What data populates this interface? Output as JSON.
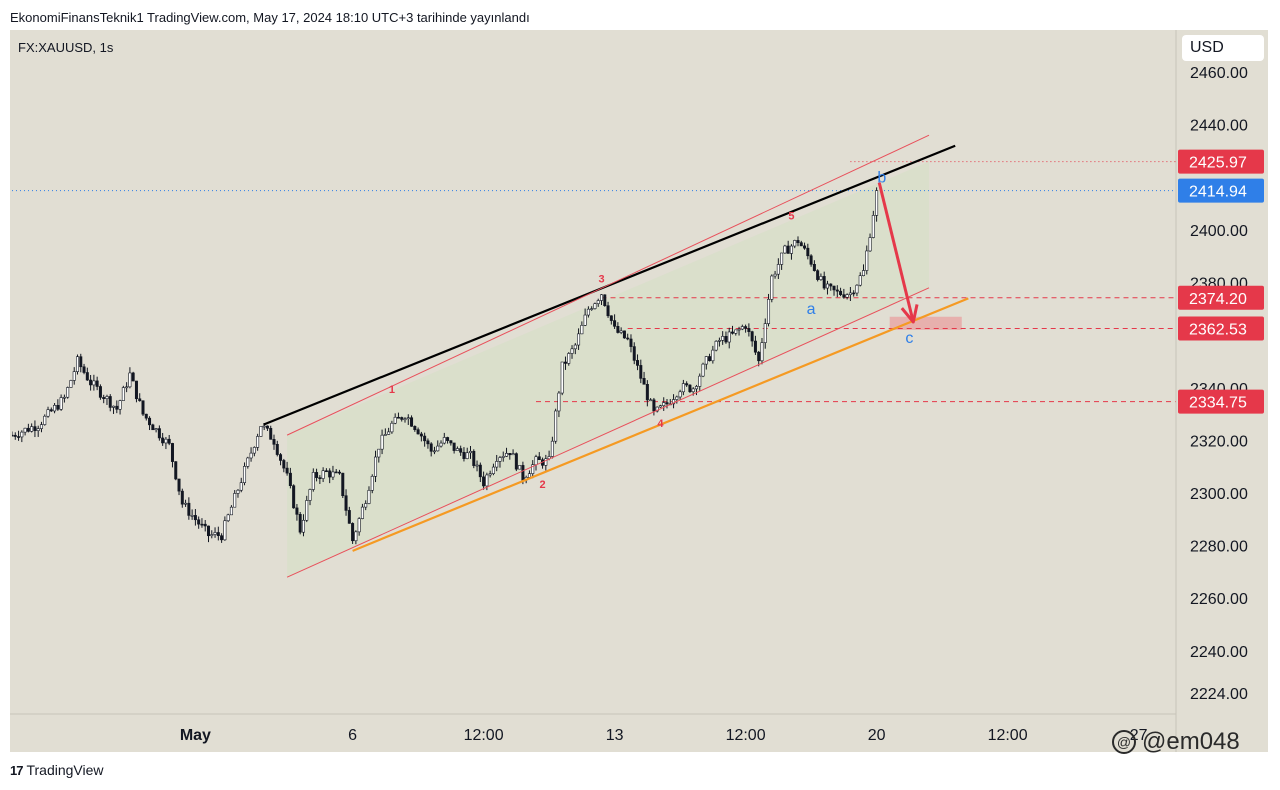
{
  "header": "EkonomiFinansTeknik1 TradingView.com, May 17, 2024 18:10 UTC+3 tarihinde yayınlandı",
  "symbol": "FX:XAUUSD, 1s",
  "currency": "USD",
  "footer_brand": "TradingView",
  "watermark": "@em048",
  "colors": {
    "background": "#e1ded3",
    "candle": "#131722",
    "black_trend": "#000000",
    "orange_trend": "#f59a23",
    "red_channel": "#e8505b",
    "price_tag_red": "#e5384a",
    "price_tag_blue": "#2f7fe8",
    "wave_red": "#e5384a",
    "wave_blue": "#2f7fe8",
    "arrow": "#e5384a"
  },
  "chart_data": {
    "type": "candlestick",
    "title": "",
    "ylim": [
      2216,
      2476
    ],
    "y_ticks": [
      "2460.00",
      "2440.00",
      "2400.00",
      "2380.00",
      "2340.00",
      "2320.00",
      "2300.00",
      "2280.00",
      "2260.00",
      "2240.00",
      "2224.00"
    ],
    "x_ticks": [
      {
        "label": "May",
        "bar": 14,
        "bold": true
      },
      {
        "label": "6",
        "bar": 26
      },
      {
        "label": "12:00",
        "bar": 36
      },
      {
        "label": "13",
        "bar": 46
      },
      {
        "label": "12:00",
        "bar": 56
      },
      {
        "label": "20",
        "bar": 66
      },
      {
        "label": "12:00",
        "bar": 76
      },
      {
        "label": "27",
        "bar": 86
      }
    ],
    "close_path": [
      [
        0,
        2322
      ],
      [
        2,
        2326
      ],
      [
        4,
        2336
      ],
      [
        5,
        2350
      ],
      [
        6,
        2342
      ],
      [
        8,
        2332
      ],
      [
        9,
        2345
      ],
      [
        10,
        2330
      ],
      [
        12,
        2318
      ],
      [
        13,
        2296
      ],
      [
        15,
        2284
      ],
      [
        16,
        2284
      ],
      [
        17,
        2298
      ],
      [
        18,
        2312
      ],
      [
        19,
        2326
      ],
      [
        20,
        2320
      ],
      [
        21,
        2306
      ],
      [
        22,
        2286
      ],
      [
        23,
        2306
      ],
      [
        24,
        2308
      ],
      [
        25,
        2306
      ],
      [
        26,
        2282
      ],
      [
        27,
        2298
      ],
      [
        28,
        2318
      ],
      [
        29,
        2326
      ],
      [
        30,
        2330
      ],
      [
        31,
        2324
      ],
      [
        32,
        2316
      ],
      [
        33,
        2320
      ],
      [
        34,
        2316
      ],
      [
        35,
        2314
      ],
      [
        36,
        2304
      ],
      [
        37,
        2314
      ],
      [
        38,
        2316
      ],
      [
        39,
        2306
      ],
      [
        40,
        2312
      ],
      [
        41,
        2312
      ],
      [
        42,
        2348
      ],
      [
        43,
        2356
      ],
      [
        44,
        2370
      ],
      [
        45,
        2376
      ],
      [
        46,
        2362
      ],
      [
        47,
        2358
      ],
      [
        48,
        2344
      ],
      [
        49,
        2330
      ],
      [
        50,
        2334
      ],
      [
        51,
        2340
      ],
      [
        52,
        2340
      ],
      [
        53,
        2350
      ],
      [
        54,
        2358
      ],
      [
        55,
        2360
      ],
      [
        56,
        2364
      ],
      [
        57,
        2350
      ],
      [
        58,
        2382
      ],
      [
        59,
        2392
      ],
      [
        60,
        2396
      ],
      [
        61,
        2388
      ],
      [
        62,
        2378
      ],
      [
        63,
        2376
      ],
      [
        64,
        2376
      ],
      [
        65,
        2384
      ],
      [
        66,
        2414
      ]
    ],
    "price_tags": [
      {
        "label": "2425.97",
        "value": 2425.97,
        "color": "red"
      },
      {
        "label": "2414.94",
        "value": 2414.94,
        "color": "blue"
      },
      {
        "label": "2374.20",
        "value": 2374.2,
        "color": "red"
      },
      {
        "label": "2362.53",
        "value": 2362.53,
        "color": "red"
      },
      {
        "label": "2334.75",
        "value": 2334.75,
        "color": "red"
      }
    ],
    "horizontal_levels": [
      {
        "value": 2425.97,
        "from_bar": 64,
        "style": "dotted",
        "color": "red"
      },
      {
        "value": 2414.94,
        "from_bar": 0,
        "style": "dotted",
        "color": "blue"
      },
      {
        "value": 2374.2,
        "from_bar": 45,
        "style": "dashed",
        "color": "red"
      },
      {
        "value": 2362.53,
        "from_bar": 47,
        "style": "dashed",
        "color": "red"
      },
      {
        "value": 2334.75,
        "from_bar": 40,
        "style": "dashed",
        "color": "red"
      }
    ],
    "trendlines": [
      {
        "name": "black",
        "from": [
          19.2,
          2326
        ],
        "to": [
          72,
          2432
        ]
      },
      {
        "name": "orange",
        "from": [
          26,
          2278
        ],
        "to": [
          73,
          2374
        ]
      },
      {
        "name": "red-upper",
        "from": [
          21,
          2322
        ],
        "to": [
          70,
          2436
        ]
      },
      {
        "name": "red-lower",
        "from": [
          21,
          2268
        ],
        "to": [
          70,
          2378
        ]
      }
    ],
    "channel_shade": {
      "from_bar": 21,
      "to_bar": 70,
      "upper": [
        2322,
        2426
      ],
      "lower": [
        2268,
        2378
      ]
    },
    "target_zone": {
      "from_bar": 67,
      "to_bar": 72.5,
      "top": 2367,
      "bottom": 2362
    },
    "arrow": {
      "from": [
        66.2,
        2418
      ],
      "to": [
        68.8,
        2365
      ]
    },
    "wave_labels": [
      {
        "label": "1",
        "bar": 29,
        "value": 2338,
        "color": "red"
      },
      {
        "label": "2",
        "bar": 40.5,
        "value": 2302,
        "color": "red"
      },
      {
        "label": "3",
        "bar": 45,
        "value": 2380,
        "color": "red"
      },
      {
        "label": "4",
        "bar": 49.5,
        "value": 2325,
        "color": "red"
      },
      {
        "label": "5",
        "bar": 59.5,
        "value": 2404,
        "color": "red"
      },
      {
        "label": "a",
        "bar": 61,
        "value": 2368,
        "color": "blue"
      },
      {
        "label": "b",
        "bar": 66.4,
        "value": 2418,
        "color": "blue"
      },
      {
        "label": "c",
        "bar": 68.5,
        "value": 2357,
        "color": "blue"
      }
    ]
  }
}
